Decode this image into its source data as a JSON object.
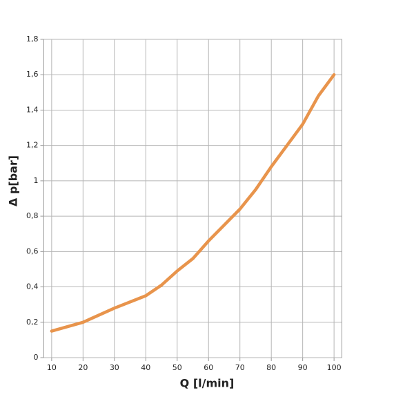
{
  "chart_data": {
    "type": "line",
    "x_label": "Q [l/min]",
    "y_label": "Δ p[bar]",
    "x": [
      10,
      20,
      30,
      40,
      45,
      50,
      55,
      60,
      65,
      70,
      75,
      80,
      85,
      90,
      95,
      100
    ],
    "series": [
      {
        "color": "#e8944c",
        "values": [
          0.15,
          0.2,
          0.28,
          0.35,
          0.41,
          0.49,
          0.56,
          0.66,
          0.75,
          0.84,
          0.95,
          1.08,
          1.2,
          1.32,
          1.48,
          1.6
        ]
      }
    ],
    "xlim": [
      7.5,
      102.5
    ],
    "ylim": [
      0,
      1.8
    ],
    "xticks": [
      10,
      20,
      30,
      40,
      50,
      60,
      70,
      80,
      90,
      100
    ],
    "yticks": [
      0,
      {
        "value": 0.2,
        "label": "0,2"
      },
      {
        "value": 0.4,
        "label": "0,4"
      },
      {
        "value": 0.6,
        "label": "0,6"
      },
      {
        "value": 0.8,
        "label": "0,8"
      },
      1,
      {
        "value": 1.2,
        "label": "1,2"
      },
      {
        "value": 1.4,
        "label": "1,4"
      },
      {
        "value": 1.6,
        "label": "1,6"
      },
      {
        "value": 1.8,
        "label": "1,8"
      }
    ],
    "grid": true
  }
}
